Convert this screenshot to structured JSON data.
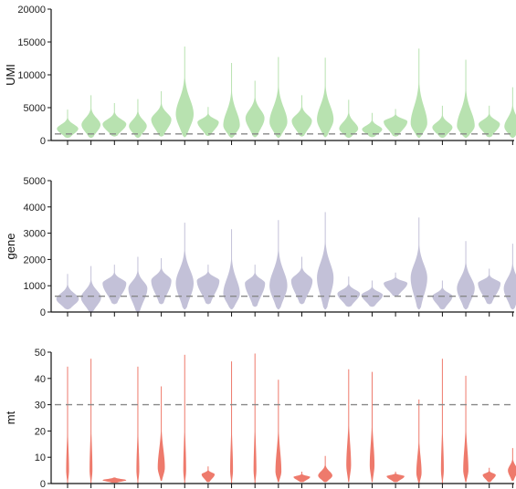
{
  "chart_data": [
    {
      "type": "violin",
      "ylabel": "UMI",
      "ylim": [
        0,
        20000
      ],
      "yticks": [
        0,
        5000,
        10000,
        15000,
        20000
      ],
      "ytick_labels": [
        "0",
        "5000",
        "10000",
        "15000",
        "20000"
      ],
      "threshold": 1000,
      "color": "#b8e2b0",
      "series": [
        {
          "min": 400,
          "max": 4700,
          "peak": 1800,
          "width": 0.9
        },
        {
          "min": 400,
          "max": 6900,
          "peak": 2400,
          "width": 0.8
        },
        {
          "min": 600,
          "max": 5700,
          "peak": 2500,
          "width": 1.0
        },
        {
          "min": 400,
          "max": 6300,
          "peak": 2200,
          "width": 0.75
        },
        {
          "min": 600,
          "max": 7500,
          "peak": 3200,
          "width": 0.85
        },
        {
          "min": 500,
          "max": 14300,
          "peak": 4000,
          "width": 0.75
        },
        {
          "min": 700,
          "max": 5100,
          "peak": 2800,
          "width": 0.9
        },
        {
          "min": 400,
          "max": 11800,
          "peak": 2300,
          "width": 0.7
        },
        {
          "min": 500,
          "max": 9100,
          "peak": 3400,
          "width": 0.8
        },
        {
          "min": 400,
          "max": 12700,
          "peak": 2800,
          "width": 0.75
        },
        {
          "min": 600,
          "max": 6900,
          "peak": 3000,
          "width": 0.85
        },
        {
          "min": 500,
          "max": 12600,
          "peak": 3200,
          "width": 0.7
        },
        {
          "min": 400,
          "max": 6200,
          "peak": 1800,
          "width": 0.8
        },
        {
          "min": 500,
          "max": 4200,
          "peak": 1700,
          "width": 0.85
        },
        {
          "min": 600,
          "max": 4800,
          "peak": 2900,
          "width": 1.0
        },
        {
          "min": 400,
          "max": 14000,
          "peak": 2600,
          "width": 0.7
        },
        {
          "min": 400,
          "max": 5300,
          "peak": 2000,
          "width": 0.85
        },
        {
          "min": 400,
          "max": 12300,
          "peak": 2200,
          "width": 0.75
        },
        {
          "min": 500,
          "max": 5300,
          "peak": 2500,
          "width": 0.9
        },
        {
          "min": 400,
          "max": 8100,
          "peak": 2100,
          "width": 0.7
        }
      ]
    },
    {
      "type": "violin",
      "ylabel": "gene",
      "ylim": [
        0,
        5000
      ],
      "yticks": [
        0,
        1000,
        2000,
        3000,
        4000,
        5000
      ],
      "ytick_labels": [
        "0",
        "1000",
        "2000",
        "3000",
        "4000",
        "5000"
      ],
      "threshold": 600,
      "color": "#c3c1d8",
      "series": [
        {
          "min": 100,
          "max": 1450,
          "peak": 500,
          "width": 0.95
        },
        {
          "min": 0,
          "max": 1750,
          "peak": 550,
          "width": 0.85
        },
        {
          "min": 300,
          "max": 1800,
          "peak": 1100,
          "width": 1.0
        },
        {
          "min": 0,
          "max": 2100,
          "peak": 900,
          "width": 0.8
        },
        {
          "min": 300,
          "max": 2050,
          "peak": 1200,
          "width": 0.85
        },
        {
          "min": 100,
          "max": 3400,
          "peak": 1100,
          "width": 0.75
        },
        {
          "min": 300,
          "max": 1800,
          "peak": 1200,
          "width": 0.95
        },
        {
          "min": 100,
          "max": 3150,
          "peak": 700,
          "width": 0.7
        },
        {
          "min": 200,
          "max": 1800,
          "peak": 1100,
          "width": 0.85
        },
        {
          "min": 100,
          "max": 3500,
          "peak": 1000,
          "width": 0.75
        },
        {
          "min": 300,
          "max": 2100,
          "peak": 1200,
          "width": 0.9
        },
        {
          "min": 100,
          "max": 3800,
          "peak": 1300,
          "width": 0.7
        },
        {
          "min": 200,
          "max": 1350,
          "peak": 700,
          "width": 0.95
        },
        {
          "min": 200,
          "max": 1200,
          "peak": 650,
          "width": 0.9
        },
        {
          "min": 600,
          "max": 1500,
          "peak": 1100,
          "width": 1.0
        },
        {
          "min": 100,
          "max": 3600,
          "peak": 1300,
          "width": 0.7
        },
        {
          "min": 100,
          "max": 1200,
          "peak": 600,
          "width": 0.85
        },
        {
          "min": 100,
          "max": 2700,
          "peak": 900,
          "width": 0.75
        },
        {
          "min": 300,
          "max": 1650,
          "peak": 1100,
          "width": 0.95
        },
        {
          "min": 100,
          "max": 2600,
          "peak": 900,
          "width": 0.75
        }
      ]
    },
    {
      "type": "violin",
      "ylabel": "mt",
      "ylim": [
        0,
        50
      ],
      "yticks": [
        0,
        10,
        20,
        30,
        40,
        50
      ],
      "ytick_labels": [
        "0",
        "10",
        "20",
        "30",
        "40",
        "50"
      ],
      "threshold": 30,
      "color": "#ee7a6c",
      "series": [
        {
          "min": 0,
          "max": 44.5,
          "peak": 5,
          "width": 0.12
        },
        {
          "min": 0,
          "max": 47.5,
          "peak": 5,
          "width": 0.12
        },
        {
          "min": 0.3,
          "max": 2.3,
          "peak": 1.3,
          "width": 1.0
        },
        {
          "min": 0,
          "max": 44.5,
          "peak": 5,
          "width": 0.12
        },
        {
          "min": 1,
          "max": 37,
          "peak": 6,
          "width": 0.3
        },
        {
          "min": 0,
          "max": 49,
          "peak": 5,
          "width": 0.12
        },
        {
          "min": 0.5,
          "max": 6.5,
          "peak": 3.5,
          "width": 0.55
        },
        {
          "min": 0,
          "max": 46.5,
          "peak": 5,
          "width": 0.12
        },
        {
          "min": 0,
          "max": 49.5,
          "peak": 5,
          "width": 0.12
        },
        {
          "min": 0.5,
          "max": 39.5,
          "peak": 4.5,
          "width": 0.25
        },
        {
          "min": 0.5,
          "max": 4.5,
          "peak": 2.5,
          "width": 0.7
        },
        {
          "min": 0.5,
          "max": 10.5,
          "peak": 3,
          "width": 0.6
        },
        {
          "min": 0.5,
          "max": 43.5,
          "peak": 7,
          "width": 0.2
        },
        {
          "min": 0.5,
          "max": 42.5,
          "peak": 7,
          "width": 0.2
        },
        {
          "min": 0.5,
          "max": 4.5,
          "peak": 2.8,
          "width": 0.75
        },
        {
          "min": 0,
          "max": 32,
          "peak": 4,
          "width": 0.22
        },
        {
          "min": 0,
          "max": 47.5,
          "peak": 5,
          "width": 0.12
        },
        {
          "min": 0.5,
          "max": 41,
          "peak": 5,
          "width": 0.22
        },
        {
          "min": 0.5,
          "max": 6,
          "peak": 3.3,
          "width": 0.55
        },
        {
          "min": 1,
          "max": 13.5,
          "peak": 5,
          "width": 0.4
        }
      ]
    }
  ]
}
